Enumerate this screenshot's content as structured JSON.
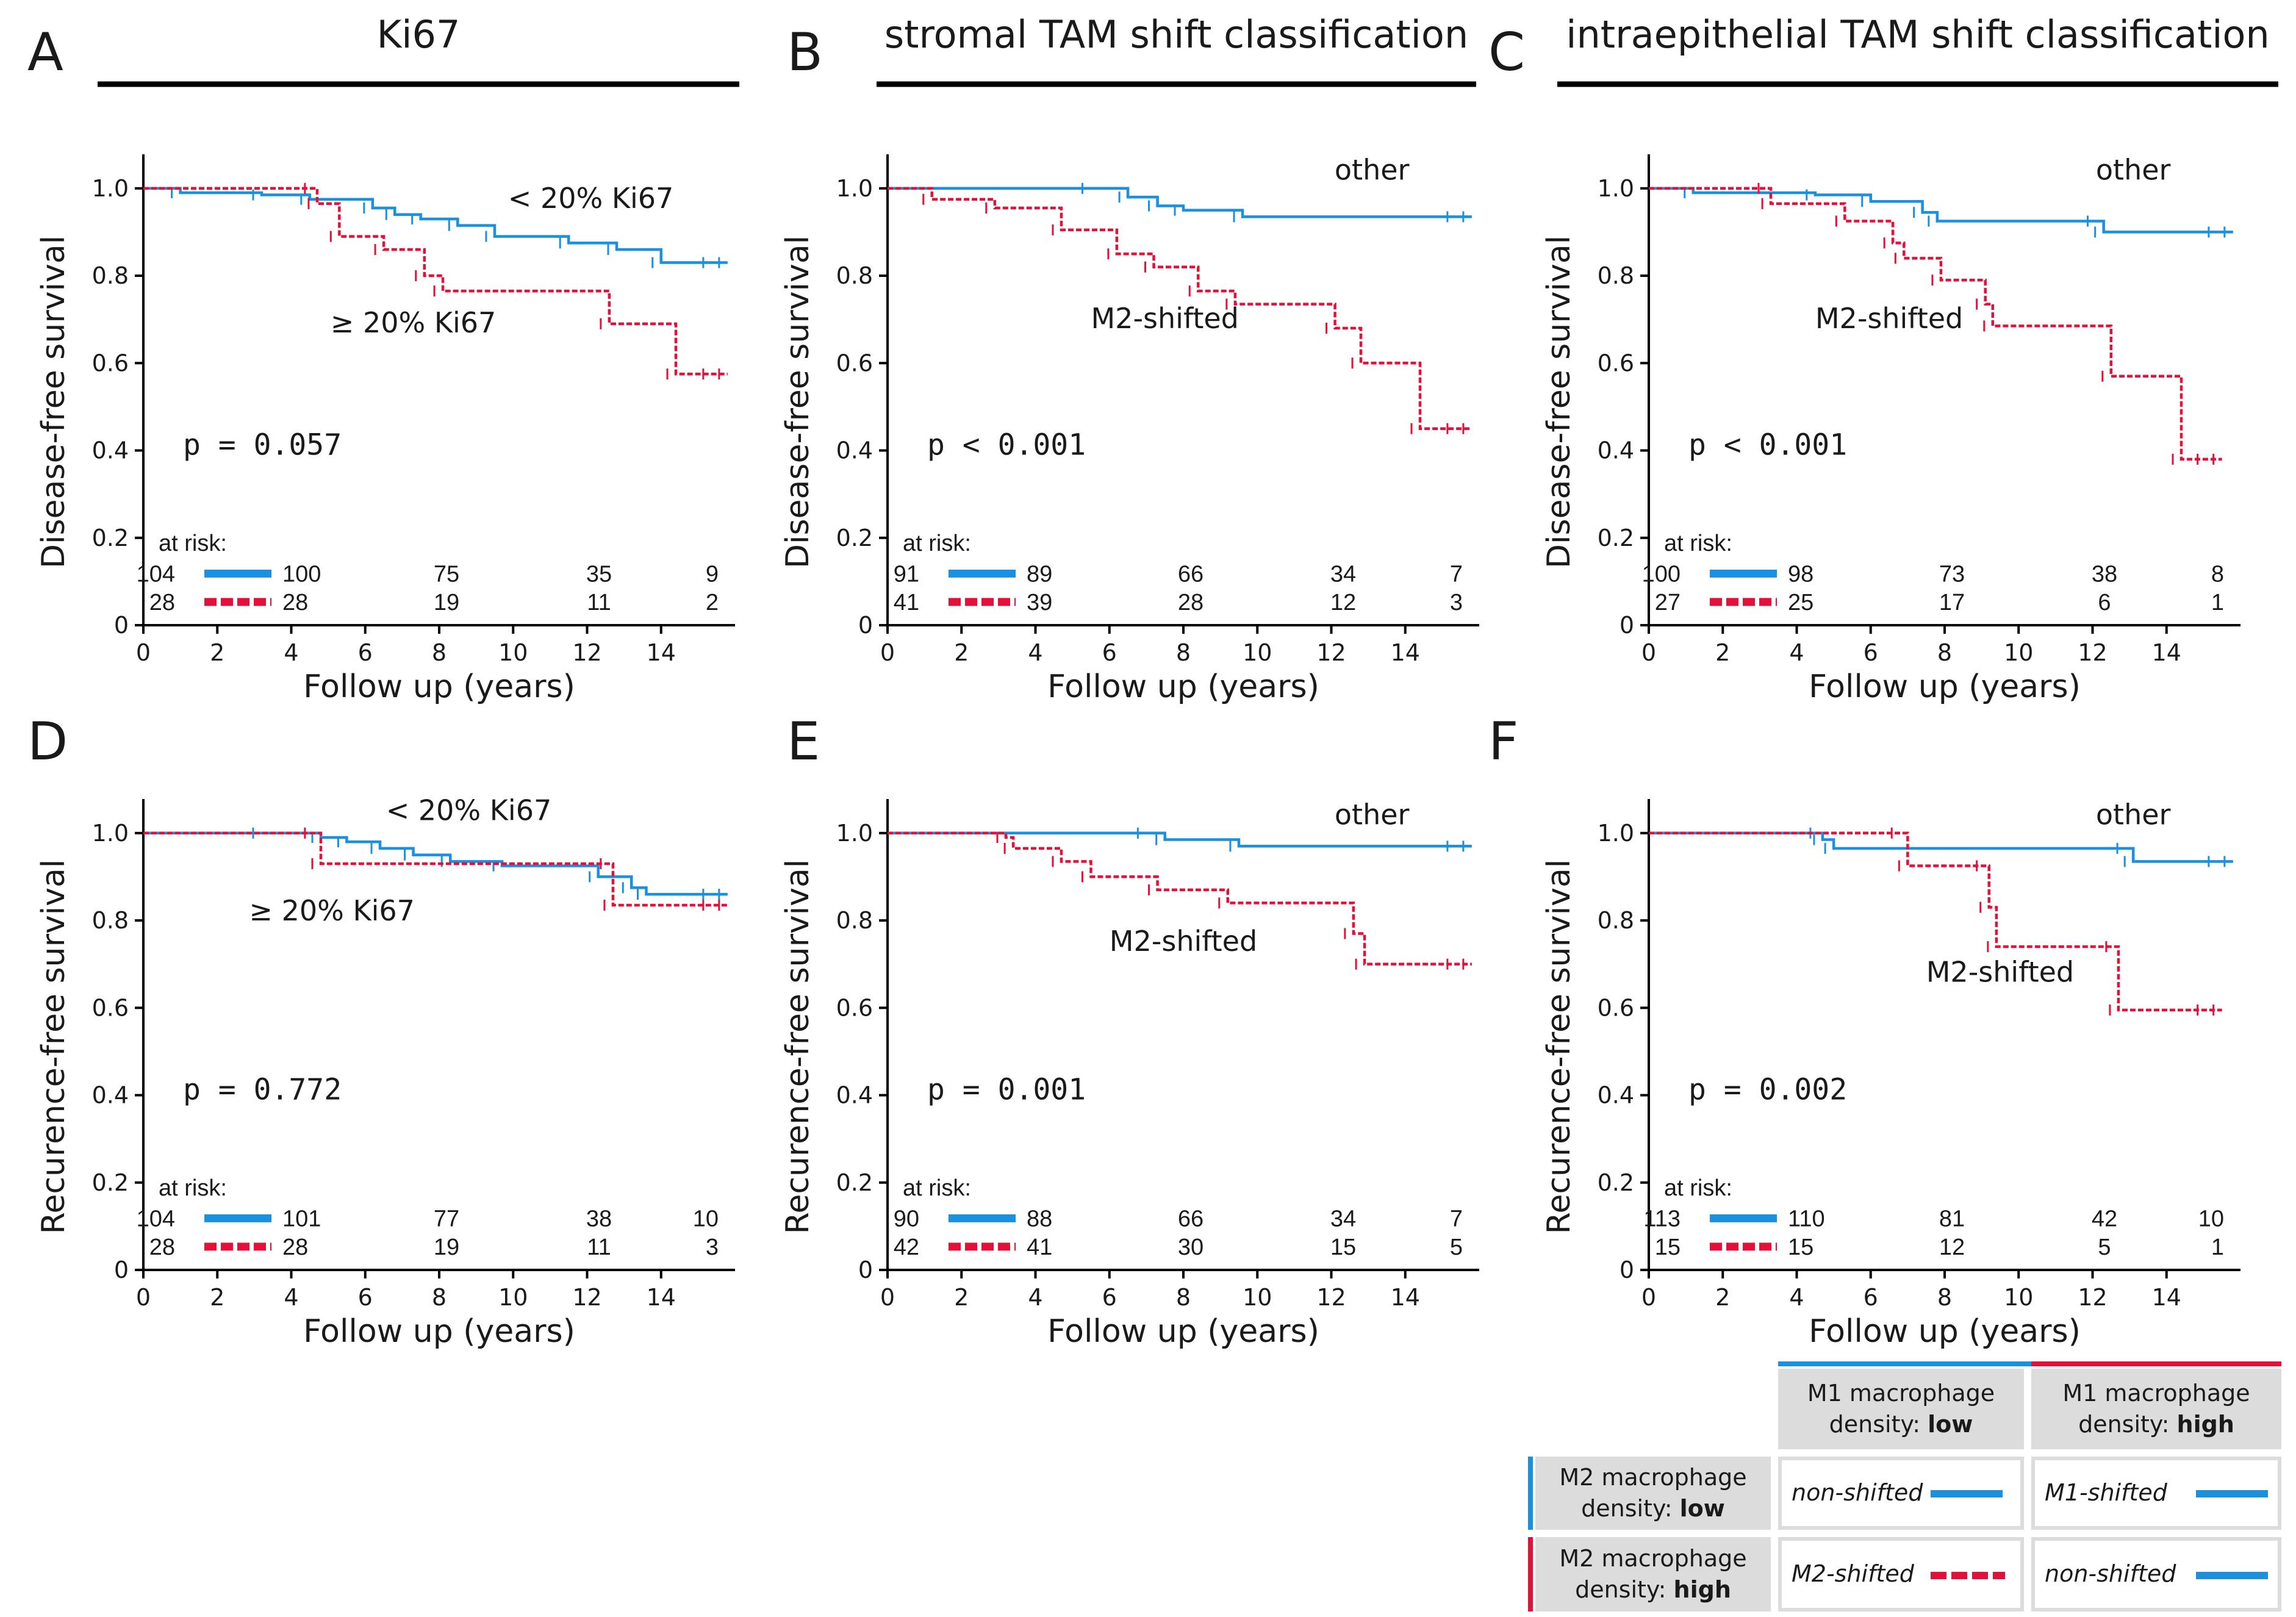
{
  "colors": {
    "other": "#1a90e0",
    "shifted": "#e5103a",
    "axis": "#000000",
    "legend_bg": "#dcdcdc"
  },
  "shared": {
    "xlabel": "Follow up (years)",
    "x_ticks": [
      "0",
      "2",
      "4",
      "6",
      "8",
      "10",
      "12",
      "14"
    ],
    "y_ticks": [
      "0",
      "0.2",
      "0.4",
      "0.6",
      "0.8",
      "1.0"
    ],
    "at_risk_label": "at risk:"
  },
  "chart_data": [
    {
      "panel": "A",
      "type": "line",
      "title": "Ki67",
      "ylabel": "Disease-free survival",
      "xlim": [
        0,
        16
      ],
      "ylim": [
        0,
        1.05
      ],
      "p_value": "p = 0.057",
      "series": [
        {
          "name": "< 20% Ki67",
          "style": "solid",
          "points": [
            [
              0,
              1.0
            ],
            [
              1,
              0.99
            ],
            [
              3.2,
              0.985
            ],
            [
              4.5,
              0.975
            ],
            [
              6.2,
              0.955
            ],
            [
              6.8,
              0.94
            ],
            [
              7.5,
              0.93
            ],
            [
              8.5,
              0.915
            ],
            [
              9.5,
              0.89
            ],
            [
              11.5,
              0.875
            ],
            [
              12.8,
              0.86
            ],
            [
              14,
              0.83
            ],
            [
              15.8,
              0.83
            ]
          ]
        },
        {
          "name": "≥ 20% Ki67",
          "style": "dashed",
          "points": [
            [
              0,
              1.0
            ],
            [
              4.6,
              1.0
            ],
            [
              4.7,
              0.965
            ],
            [
              5.3,
              0.89
            ],
            [
              6.5,
              0.86
            ],
            [
              7.6,
              0.8
            ],
            [
              8.1,
              0.765
            ],
            [
              12.6,
              0.69
            ],
            [
              14.4,
              0.575
            ],
            [
              15.8,
              0.575
            ]
          ]
        }
      ],
      "annotations": [
        {
          "text": "< 20% Ki67",
          "x": 12.1,
          "y": 0.955
        },
        {
          "text": "≥ 20% Ki67",
          "x": 7.3,
          "y": 0.67
        }
      ],
      "at_risk": {
        "values": [
          [
            "104",
            "100",
            "75",
            "35",
            "9"
          ],
          [
            "28",
            "28",
            "19",
            "11",
            "2"
          ]
        ]
      }
    },
    {
      "panel": "B",
      "type": "line",
      "title": "stromal TAM shift classification",
      "ylabel": "Disease-free survival",
      "xlim": [
        0,
        16
      ],
      "ylim": [
        0,
        1.05
      ],
      "p_value": "p < 0.001",
      "series": [
        {
          "name": "other",
          "style": "solid",
          "points": [
            [
              0,
              1.0
            ],
            [
              5.5,
              1.0
            ],
            [
              6.5,
              0.98
            ],
            [
              7.3,
              0.96
            ],
            [
              8,
              0.95
            ],
            [
              9.6,
              0.935
            ],
            [
              15.8,
              0.935
            ]
          ]
        },
        {
          "name": "M2-shifted",
          "style": "dashed",
          "points": [
            [
              0,
              1.0
            ],
            [
              1.2,
              0.975
            ],
            [
              2.9,
              0.955
            ],
            [
              4.7,
              0.905
            ],
            [
              6.2,
              0.85
            ],
            [
              7.2,
              0.82
            ],
            [
              8.4,
              0.765
            ],
            [
              9.4,
              0.735
            ],
            [
              12.1,
              0.68
            ],
            [
              12.8,
              0.6
            ],
            [
              14.4,
              0.45
            ],
            [
              15.8,
              0.45
            ]
          ]
        }
      ],
      "annotations": [
        {
          "text": "other",
          "x": 13.1,
          "y": 1.02
        },
        {
          "text": "M2-shifted",
          "x": 7.5,
          "y": 0.68
        }
      ],
      "at_risk": {
        "values": [
          [
            "91",
            "89",
            "66",
            "34",
            "7"
          ],
          [
            "41",
            "39",
            "28",
            "12",
            "3"
          ]
        ]
      }
    },
    {
      "panel": "C",
      "type": "line",
      "title": "intraepithelial TAM shift classification",
      "ylabel": "Disease-free survival",
      "xlim": [
        0,
        16
      ],
      "ylim": [
        0,
        1.05
      ],
      "p_value": "p < 0.001",
      "series": [
        {
          "name": "other",
          "style": "solid",
          "points": [
            [
              0,
              1.0
            ],
            [
              1.2,
              0.99
            ],
            [
              4.5,
              0.985
            ],
            [
              6,
              0.97
            ],
            [
              7.4,
              0.945
            ],
            [
              7.8,
              0.925
            ],
            [
              12.1,
              0.925
            ],
            [
              12.3,
              0.9
            ],
            [
              15.8,
              0.9
            ]
          ]
        },
        {
          "name": "M2-shifted",
          "style": "dashed",
          "points": [
            [
              0,
              1.0
            ],
            [
              3.2,
              1.0
            ],
            [
              3.3,
              0.965
            ],
            [
              5.3,
              0.925
            ],
            [
              6.6,
              0.875
            ],
            [
              6.9,
              0.84
            ],
            [
              7.9,
              0.79
            ],
            [
              9.1,
              0.735
            ],
            [
              9.3,
              0.685
            ],
            [
              12.5,
              0.57
            ],
            [
              14.4,
              0.38
            ],
            [
              15.5,
              0.38
            ]
          ]
        }
      ],
      "annotations": [
        {
          "text": "other",
          "x": 13.1,
          "y": 1.02
        },
        {
          "text": "M2-shifted",
          "x": 6.5,
          "y": 0.68
        }
      ],
      "at_risk": {
        "values": [
          [
            "100",
            "98",
            "73",
            "38",
            "8"
          ],
          [
            "27",
            "25",
            "17",
            "6",
            "1"
          ]
        ]
      }
    },
    {
      "panel": "D",
      "type": "line",
      "title": "",
      "ylabel": "Recurence-free survival",
      "xlim": [
        0,
        16
      ],
      "ylim": [
        0,
        1.05
      ],
      "p_value": "p = 0.772",
      "series": [
        {
          "name": "< 20% Ki67",
          "style": "solid",
          "points": [
            [
              0,
              1.0
            ],
            [
              3.2,
              1.0
            ],
            [
              4.8,
              0.99
            ],
            [
              5.5,
              0.98
            ],
            [
              6.4,
              0.965
            ],
            [
              7.3,
              0.95
            ],
            [
              8.3,
              0.935
            ],
            [
              9.7,
              0.925
            ],
            [
              12.3,
              0.9
            ],
            [
              13.2,
              0.875
            ],
            [
              13.6,
              0.86
            ],
            [
              15.8,
              0.86
            ]
          ]
        },
        {
          "name": "≥ 20% Ki67",
          "style": "dashed",
          "points": [
            [
              0,
              1.0
            ],
            [
              4.6,
              1.0
            ],
            [
              4.8,
              0.93
            ],
            [
              12.6,
              0.93
            ],
            [
              12.7,
              0.835
            ],
            [
              15.8,
              0.835
            ]
          ]
        }
      ],
      "annotations": [
        {
          "text": "< 20% Ki67",
          "x": 8.8,
          "y": 1.03
        },
        {
          "text": "≥ 20% Ki67",
          "x": 5.1,
          "y": 0.8
        }
      ],
      "at_risk": {
        "values": [
          [
            "104",
            "101",
            "77",
            "38",
            "10"
          ],
          [
            "28",
            "28",
            "19",
            "11",
            "3"
          ]
        ]
      }
    },
    {
      "panel": "E",
      "type": "line",
      "title": "",
      "ylabel": "Recurence-free survival",
      "xlim": [
        0,
        16
      ],
      "ylim": [
        0,
        1.05
      ],
      "p_value": "p = 0.001",
      "series": [
        {
          "name": "other",
          "style": "solid",
          "points": [
            [
              0,
              1.0
            ],
            [
              7,
              1.0
            ],
            [
              7.5,
              0.985
            ],
            [
              9.5,
              0.97
            ],
            [
              15.8,
              0.97
            ]
          ]
        },
        {
          "name": "M2-shifted",
          "style": "dashed",
          "points": [
            [
              0,
              1.0
            ],
            [
              3.2,
              0.99
            ],
            [
              3.4,
              0.965
            ],
            [
              4.7,
              0.935
            ],
            [
              5.5,
              0.9
            ],
            [
              7.3,
              0.87
            ],
            [
              9.2,
              0.84
            ],
            [
              12.6,
              0.77
            ],
            [
              12.9,
              0.7
            ],
            [
              15.8,
              0.7
            ]
          ]
        }
      ],
      "annotations": [
        {
          "text": "other",
          "x": 13.1,
          "y": 1.02
        },
        {
          "text": "M2-shifted",
          "x": 8,
          "y": 0.73
        }
      ],
      "at_risk": {
        "values": [
          [
            "90",
            "88",
            "66",
            "34",
            "7"
          ],
          [
            "42",
            "41",
            "30",
            "15",
            "5"
          ]
        ]
      }
    },
    {
      "panel": "F",
      "type": "line",
      "title": "",
      "ylabel": "Recurence-free survival",
      "xlim": [
        0,
        16
      ],
      "ylim": [
        0,
        1.05
      ],
      "p_value": "p = 0.002",
      "series": [
        {
          "name": "other",
          "style": "solid",
          "points": [
            [
              0,
              1.0
            ],
            [
              4.6,
              1.0
            ],
            [
              4.7,
              0.985
            ],
            [
              5,
              0.965
            ],
            [
              12.9,
              0.965
            ],
            [
              13.1,
              0.935
            ],
            [
              15.8,
              0.935
            ]
          ]
        },
        {
          "name": "M2-shifted",
          "style": "dashed",
          "points": [
            [
              0,
              1.0
            ],
            [
              6.8,
              1.0
            ],
            [
              7.0,
              0.925
            ],
            [
              9.1,
              0.925
            ],
            [
              9.2,
              0.83
            ],
            [
              9.4,
              0.74
            ],
            [
              12.6,
              0.74
            ],
            [
              12.7,
              0.595
            ],
            [
              15.5,
              0.595
            ]
          ]
        }
      ],
      "annotations": [
        {
          "text": "other",
          "x": 13.1,
          "y": 1.02
        },
        {
          "text": "M2-shifted",
          "x": 9.5,
          "y": 0.66
        }
      ],
      "at_risk": {
        "values": [
          [
            "113",
            "110",
            "81",
            "42",
            "10"
          ],
          [
            "15",
            "15",
            "12",
            "5",
            "1"
          ]
        ]
      }
    }
  ],
  "legend": {
    "col_headers": [
      {
        "line1": "M1 macrophage",
        "line2_prefix": "density: ",
        "line2_bold": "low"
      },
      {
        "line1": "M1 macrophage",
        "line2_prefix": "density: ",
        "line2_bold": "high"
      }
    ],
    "row_headers": [
      {
        "line1": "M2 macrophage",
        "line2_prefix": "density: ",
        "line2_bold": "low"
      },
      {
        "line1": "M2 macrophage",
        "line2_prefix": "density: ",
        "line2_bold": "high"
      }
    ],
    "cells": [
      [
        "non-shifted",
        "M1-shifted"
      ],
      [
        "M2-shifted",
        "non-shifted"
      ]
    ]
  }
}
